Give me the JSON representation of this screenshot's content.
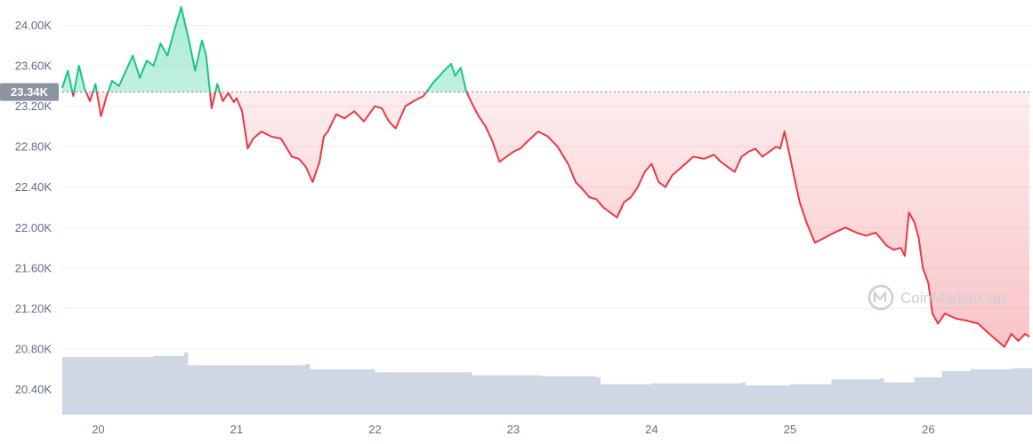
{
  "watermark": "CoinMarketCap",
  "reference": {
    "value": 23340,
    "label": "23.34K"
  },
  "chart_data": {
    "type": "line",
    "title": "",
    "xlabel": "",
    "ylabel": "",
    "x_ticks": [
      {
        "x": 20,
        "label": "20"
      },
      {
        "x": 21,
        "label": "21"
      },
      {
        "x": 22,
        "label": "22"
      },
      {
        "x": 23,
        "label": "23"
      },
      {
        "x": 24,
        "label": "24"
      },
      {
        "x": 25,
        "label": "25"
      },
      {
        "x": 26,
        "label": "26"
      }
    ],
    "y_ticks": [
      {
        "y": 24000,
        "label": "24.00K"
      },
      {
        "y": 23600,
        "label": "23.60K"
      },
      {
        "y": 23200,
        "label": "23.20K"
      },
      {
        "y": 22800,
        "label": "22.80K"
      },
      {
        "y": 22400,
        "label": "22.40K"
      },
      {
        "y": 22000,
        "label": "22.00K"
      },
      {
        "y": 21600,
        "label": "21.60K"
      },
      {
        "y": 21200,
        "label": "21.20K"
      },
      {
        "y": 20800,
        "label": "20.80K"
      },
      {
        "y": 20400,
        "label": "20.40K"
      }
    ],
    "xlim": [
      19.74,
      26.75
    ],
    "ylim": [
      20150,
      24250
    ],
    "grid": "horizontal",
    "colors": {
      "above": "#16c784",
      "below": "#ea3943",
      "volume": "#cfd6e4",
      "reference_badge": "#8a939f"
    },
    "price": {
      "x": [
        19.74,
        19.78,
        19.82,
        19.86,
        19.9,
        19.94,
        19.98,
        20.02,
        20.06,
        20.1,
        20.15,
        20.2,
        20.25,
        20.3,
        20.35,
        20.4,
        20.45,
        20.5,
        20.55,
        20.6,
        20.63,
        20.66,
        20.7,
        20.75,
        20.78,
        20.82,
        20.86,
        20.9,
        20.94,
        20.98,
        21.0,
        21.04,
        21.08,
        21.12,
        21.18,
        21.25,
        21.32,
        21.4,
        21.45,
        21.5,
        21.55,
        21.6,
        21.63,
        21.66,
        21.72,
        21.78,
        21.85,
        21.92,
        22.0,
        22.05,
        22.1,
        22.15,
        22.22,
        22.28,
        22.35,
        22.42,
        22.5,
        22.55,
        22.58,
        22.62,
        22.66,
        22.7,
        22.75,
        22.8,
        22.85,
        22.9,
        22.95,
        23.0,
        23.05,
        23.1,
        23.18,
        23.25,
        23.32,
        23.4,
        23.45,
        23.5,
        23.55,
        23.6,
        23.65,
        23.7,
        23.75,
        23.8,
        23.85,
        23.9,
        23.95,
        24.0,
        24.05,
        24.1,
        24.15,
        24.22,
        24.3,
        24.38,
        24.45,
        24.5,
        24.55,
        24.6,
        24.65,
        24.7,
        24.75,
        24.8,
        24.85,
        24.9,
        24.93,
        24.96,
        25.0,
        25.03,
        25.07,
        25.12,
        25.18,
        25.25,
        25.32,
        25.4,
        25.48,
        25.55,
        25.62,
        25.7,
        25.75,
        25.8,
        25.83,
        25.86,
        25.9,
        25.93,
        25.96,
        26.0,
        26.03,
        26.07,
        26.12,
        26.2,
        26.28,
        26.36,
        26.44,
        26.5,
        26.55,
        26.6,
        26.65,
        26.7,
        26.73
      ],
      "y": [
        23380,
        23550,
        23300,
        23600,
        23380,
        23250,
        23420,
        23100,
        23300,
        23450,
        23400,
        23550,
        23700,
        23480,
        23650,
        23600,
        23820,
        23700,
        23950,
        24180,
        24000,
        23820,
        23550,
        23850,
        23700,
        23180,
        23420,
        23250,
        23330,
        23240,
        23280,
        23150,
        22780,
        22880,
        22950,
        22900,
        22880,
        22700,
        22680,
        22600,
        22450,
        22650,
        22900,
        22950,
        23120,
        23080,
        23150,
        23050,
        23200,
        23180,
        23050,
        22980,
        23200,
        23250,
        23300,
        23430,
        23550,
        23620,
        23500,
        23580,
        23350,
        23230,
        23100,
        23000,
        22850,
        22650,
        22700,
        22750,
        22780,
        22850,
        22950,
        22900,
        22800,
        22620,
        22450,
        22380,
        22300,
        22280,
        22200,
        22150,
        22100,
        22250,
        22300,
        22400,
        22550,
        22630,
        22450,
        22400,
        22520,
        22600,
        22700,
        22680,
        22720,
        22650,
        22600,
        22550,
        22700,
        22750,
        22780,
        22700,
        22750,
        22800,
        22780,
        22950,
        22700,
        22500,
        22250,
        22050,
        21850,
        21900,
        21950,
        22000,
        21950,
        21920,
        21950,
        21820,
        21780,
        21800,
        21720,
        22150,
        22050,
        21900,
        21600,
        21450,
        21150,
        21050,
        21150,
        21100,
        21080,
        21050,
        20950,
        20880,
        20820,
        20950,
        20880,
        20950,
        20920
      ]
    },
    "volume": {
      "x": [
        19.74,
        20.4,
        20.62,
        20.65,
        21.5,
        21.53,
        22.0,
        22.7,
        23.2,
        23.6,
        23.63,
        24.0,
        24.65,
        24.68,
        25.0,
        25.3,
        25.65,
        25.68,
        25.9,
        26.1,
        26.3,
        26.6,
        26.75
      ],
      "y": [
        20720,
        20730,
        20765,
        20640,
        20650,
        20600,
        20570,
        20540,
        20530,
        20520,
        20450,
        20460,
        20470,
        20440,
        20450,
        20500,
        20510,
        20470,
        20520,
        20580,
        20600,
        20610,
        20620
      ]
    }
  }
}
